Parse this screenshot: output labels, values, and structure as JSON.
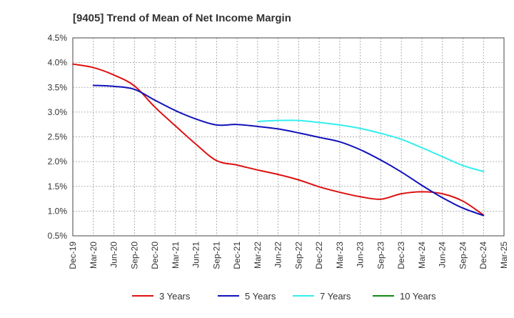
{
  "chart_data": {
    "type": "line",
    "title": "[9405]  Trend of Mean of Net Income Margin",
    "xlabel": "",
    "ylabel": "",
    "x_ticks": [
      "Dec-19",
      "Mar-20",
      "Jun-20",
      "Sep-20",
      "Dec-20",
      "Mar-21",
      "Jun-21",
      "Sep-21",
      "Dec-21",
      "Mar-22",
      "Jun-22",
      "Sep-22",
      "Dec-22",
      "Mar-23",
      "Jun-23",
      "Sep-23",
      "Dec-23",
      "Mar-24",
      "Jun-24",
      "Sep-24",
      "Dec-24",
      "Mar-25"
    ],
    "y_ticks": [
      "0.5%",
      "1.0%",
      "1.5%",
      "2.0%",
      "2.5%",
      "3.0%",
      "3.5%",
      "4.0%",
      "4.5%"
    ],
    "ylim": [
      0.5,
      4.5
    ],
    "y_unit": "%",
    "grid": "dashed vertical and horizontal",
    "legend": "bottom",
    "series": [
      {
        "name": "3 Years",
        "color": "#dd1111",
        "values": [
          3.97,
          3.9,
          3.75,
          3.53,
          3.1,
          2.72,
          2.35,
          2.02,
          1.93,
          1.83,
          1.74,
          1.63,
          1.49,
          1.38,
          1.29,
          1.24,
          1.35,
          1.39,
          1.35,
          1.2,
          0.92
        ]
      },
      {
        "name": "5 Years",
        "color": "#1111bb",
        "values": [
          null,
          3.54,
          3.52,
          3.46,
          3.24,
          3.03,
          2.86,
          2.74,
          2.75,
          2.71,
          2.66,
          2.58,
          2.49,
          2.4,
          2.24,
          2.03,
          1.79,
          1.52,
          1.27,
          1.06,
          0.91
        ]
      },
      {
        "name": "7 Years",
        "color": "#33eeee",
        "values": [
          null,
          null,
          null,
          null,
          null,
          null,
          null,
          null,
          null,
          2.81,
          2.83,
          2.83,
          2.79,
          2.74,
          2.67,
          2.57,
          2.45,
          2.28,
          2.1,
          1.92,
          1.8
        ]
      },
      {
        "name": "10 Years",
        "color": "#118811",
        "values": []
      }
    ]
  }
}
